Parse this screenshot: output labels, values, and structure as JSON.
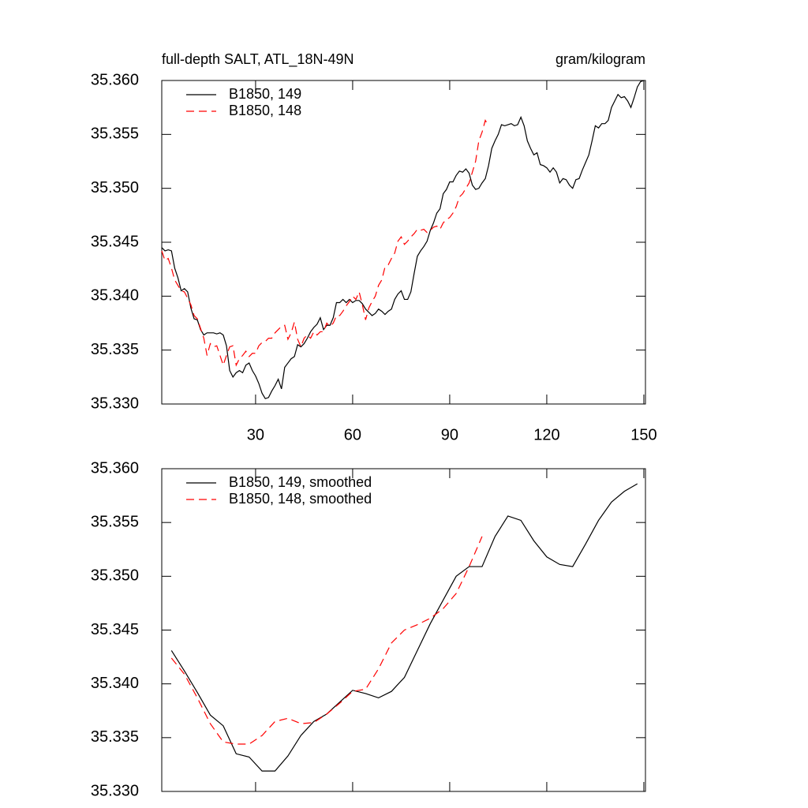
{
  "chart_data": [
    {
      "type": "line",
      "title": "full-depth SALT, ATL_18N-49N",
      "units_label": "gram/kilogram",
      "xlim": [
        1,
        150.5
      ],
      "xticks": [
        30,
        60,
        90,
        120,
        150
      ],
      "xtick_labels": true,
      "ylim": [
        35.33,
        35.36
      ],
      "yticks": [
        {
          "value": 35.33,
          "label": "35.330"
        },
        35.335,
        {
          "value": 35.34,
          "label": "35.340"
        },
        35.345,
        {
          "value": 35.35,
          "label": "35.350"
        },
        35.355,
        {
          "value": 35.36,
          "label": "35.360"
        }
      ],
      "legend": "upper left",
      "x": [
        1,
        2,
        3,
        4,
        5,
        6,
        7,
        8,
        9,
        10,
        11,
        12,
        13,
        14,
        15,
        16,
        17,
        18,
        19,
        20,
        21,
        22,
        23,
        24,
        25,
        26,
        27,
        28,
        29,
        30,
        31,
        32,
        33,
        34,
        35,
        36,
        37,
        38,
        39,
        40,
        41,
        42,
        43,
        44,
        45,
        46,
        47,
        48,
        49,
        50,
        51,
        52,
        53,
        54,
        55,
        56,
        57,
        58,
        59,
        60,
        61,
        62,
        63,
        64,
        65,
        66,
        67,
        68,
        69,
        70,
        71,
        72,
        73,
        74,
        75,
        76,
        77,
        78,
        79,
        80,
        81,
        82,
        83,
        84,
        85,
        86,
        87,
        88,
        89,
        90,
        91,
        92,
        93,
        94,
        95,
        96,
        97,
        98,
        99,
        100,
        101,
        102,
        103,
        104,
        105,
        106,
        107,
        108,
        109,
        110,
        111,
        112,
        113,
        114,
        115,
        116,
        117,
        118,
        119,
        120,
        121,
        122,
        123,
        124,
        125,
        126,
        127,
        128,
        129,
        130,
        131,
        132,
        133,
        134,
        135,
        136,
        137,
        138,
        139,
        140,
        141,
        142,
        143,
        144,
        145,
        146,
        147,
        148,
        149,
        150
      ],
      "series": [
        {
          "name": "B1850, 149",
          "color": "#000000",
          "dash": "solid",
          "values": [
            35.3445,
            35.3442,
            35.3443,
            35.3442,
            35.3426,
            35.3417,
            35.3405,
            35.3407,
            35.3404,
            35.3389,
            35.3379,
            35.3378,
            35.3369,
            35.3364,
            35.3366,
            35.3366,
            35.3366,
            35.3365,
            35.3366,
            35.3364,
            35.3354,
            35.3331,
            35.3325,
            35.3329,
            35.3331,
            35.3329,
            35.3336,
            35.3338,
            35.3331,
            35.3326,
            35.3319,
            35.331,
            35.3305,
            35.3306,
            35.3312,
            35.3317,
            35.3323,
            35.3314,
            35.3334,
            35.3338,
            35.3342,
            35.3344,
            35.3355,
            35.3353,
            35.3356,
            35.3361,
            35.3367,
            35.3371,
            35.3374,
            35.338,
            35.3369,
            35.3373,
            35.3373,
            35.338,
            35.3394,
            35.3394,
            35.3397,
            35.3394,
            35.3397,
            35.3394,
            35.3396,
            35.3396,
            35.3393,
            35.3388,
            35.3385,
            35.3382,
            35.3384,
            35.3388,
            35.3386,
            35.3383,
            35.3386,
            35.3388,
            35.3397,
            35.3402,
            35.3405,
            35.3397,
            35.3397,
            35.3404,
            35.3421,
            35.3437,
            35.3442,
            35.3446,
            35.3451,
            35.3461,
            35.3468,
            35.3477,
            35.3481,
            35.3495,
            35.3499,
            35.3506,
            35.3506,
            35.3512,
            35.3516,
            35.3515,
            35.3518,
            35.3514,
            35.3503,
            35.3499,
            35.35,
            35.3505,
            35.3509,
            35.3521,
            35.3537,
            35.3544,
            35.355,
            35.3559,
            35.3558,
            35.3559,
            35.356,
            35.3558,
            35.3559,
            35.3566,
            35.3558,
            35.3544,
            35.3537,
            35.3531,
            35.3533,
            35.3522,
            35.3521,
            35.3519,
            35.3515,
            35.3519,
            35.3515,
            35.3505,
            35.3509,
            35.3508,
            35.3503,
            35.35,
            35.3508,
            35.3509,
            35.3517,
            35.3524,
            35.3531,
            35.3544,
            35.3558,
            35.3556,
            35.356,
            35.356,
            35.3563,
            35.3575,
            35.3581,
            35.3587,
            35.3584,
            35.3585,
            35.3581,
            35.3575,
            35.3584,
            35.3594,
            35.3599,
            35.36
          ]
        },
        {
          "name": "B1850, 148",
          "color": "#ff0000",
          "dash": "dashed",
          "values": [
            35.3442,
            35.3433,
            35.3435,
            35.3426,
            35.3415,
            35.341,
            35.3405,
            35.3404,
            35.3398,
            35.3392,
            35.3382,
            35.3379,
            35.337,
            35.3361,
            35.3345,
            35.3356,
            35.3353,
            35.3354,
            35.3345,
            35.3336,
            35.3345,
            35.3353,
            35.3354,
            35.3336,
            35.3342,
            35.3345,
            35.3349,
            35.3344,
            35.3347,
            35.3347,
            35.3354,
            35.3357,
            35.3358,
            35.3361,
            35.3361,
            35.3366,
            35.3369,
            35.3372,
            35.3373,
            35.336,
            35.3366,
            35.3376,
            35.336,
            35.3353,
            35.3361,
            35.3364,
            35.3361,
            35.3367,
            35.3364,
            35.3367,
            35.3367,
            35.3375,
            35.3372,
            35.3375,
            35.3382,
            35.3382,
            35.3386,
            35.3391,
            35.3395,
            35.34,
            35.3397,
            35.3404,
            35.3392,
            35.3378,
            35.3389,
            35.3395,
            35.34,
            35.341,
            35.3415,
            35.3427,
            35.3429,
            35.3435,
            35.344,
            35.3451,
            35.3455,
            35.3448,
            35.3451,
            35.3455,
            35.3458,
            35.3462,
            35.3461,
            35.3462,
            35.3459,
            35.3461,
            35.3464,
            35.3465,
            35.3462,
            35.3468,
            35.3471,
            35.3473,
            35.3477,
            35.3483,
            35.3492,
            35.3495,
            35.35,
            35.3505,
            35.3515,
            35.3525,
            35.3544,
            35.3552,
            35.3563,
            35.3558,
            null,
            null,
            null,
            null,
            null,
            null,
            null,
            null,
            null,
            null,
            null,
            null,
            null,
            null,
            null,
            null,
            null,
            null,
            null,
            null,
            null,
            null,
            null,
            null,
            null,
            null,
            null,
            null,
            null,
            null,
            null,
            null,
            null,
            null,
            null,
            null,
            null,
            null,
            null,
            null,
            null,
            null,
            null,
            null,
            null,
            null,
            null,
            null
          ]
        }
      ]
    },
    {
      "type": "line",
      "xlim": [
        1,
        150.5
      ],
      "xticks": [
        30,
        60,
        90,
        120,
        150
      ],
      "xtick_labels": false,
      "ylim": [
        35.33,
        35.36
      ],
      "yticks": [
        {
          "value": 35.33,
          "label": "35.330"
        },
        35.335,
        {
          "value": 35.34,
          "label": "35.340"
        },
        35.345,
        {
          "value": 35.35,
          "label": "35.350"
        },
        35.355,
        {
          "value": 35.36,
          "label": "35.360"
        }
      ],
      "legend": "upper left",
      "x": [
        4,
        8,
        12,
        16,
        20,
        24,
        28,
        32,
        36,
        40,
        44,
        48,
        52,
        56,
        60,
        64,
        68,
        72,
        76,
        80,
        84,
        88,
        92,
        96,
        100,
        104,
        108,
        112,
        116,
        120,
        124,
        128,
        132,
        136,
        140,
        144,
        148
      ],
      "series": [
        {
          "name": "B1850, 149, smoothed",
          "color": "#000000",
          "dash": "solid",
          "values": [
            35.3431,
            35.3412,
            35.3392,
            35.3371,
            35.3361,
            35.3335,
            35.3332,
            35.3319,
            35.3319,
            35.3333,
            35.3352,
            35.3365,
            35.3372,
            35.3383,
            35.3394,
            35.3391,
            35.3387,
            35.3393,
            35.3406,
            35.3431,
            35.3456,
            35.3478,
            35.35,
            35.3509,
            35.3509,
            35.3537,
            35.3556,
            35.3552,
            35.3533,
            35.3518,
            35.3511,
            35.3509,
            35.353,
            35.3552,
            35.3569,
            35.3579,
            35.3586
          ]
        },
        {
          "name": "B1850, 148, smoothed",
          "color": "#ff0000",
          "dash": "dashed",
          "values": [
            35.3424,
            35.3409,
            35.3387,
            35.3363,
            35.3346,
            35.3344,
            35.3344,
            35.3352,
            35.3365,
            35.3368,
            35.3363,
            35.3364,
            35.3372,
            35.3382,
            35.3393,
            35.3395,
            35.3414,
            35.3438,
            35.345,
            35.3455,
            35.3461,
            35.347,
            35.3484,
            35.3509,
            35.3537,
            null,
            null,
            null,
            null,
            null,
            null,
            null,
            null,
            null,
            null,
            null,
            null
          ]
        }
      ]
    }
  ]
}
